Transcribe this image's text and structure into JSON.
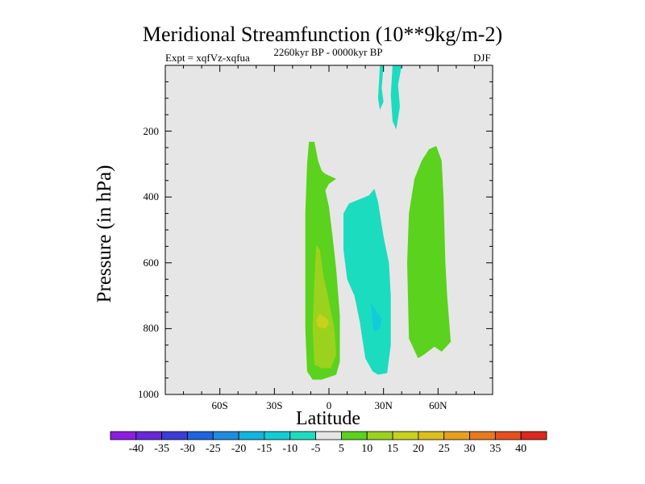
{
  "chart_data": {
    "type": "contour",
    "title": "Meridional Streamfunction (10**9kg/m-2)",
    "subtitle_left": "Expt = xqfVz-xqfua",
    "subtitle_center": "2260kyr BP - 0000kyr BP",
    "subtitle_right": "DJF",
    "xlabel": "Latitude",
    "ylabel": "Pressure (in hPa)",
    "xlim": [
      -90,
      90
    ],
    "ylim": [
      1000,
      0
    ],
    "x_ticks": [
      {
        "value": -60,
        "label": "60S"
      },
      {
        "value": -30,
        "label": "30S"
      },
      {
        "value": 0,
        "label": "0"
      },
      {
        "value": 30,
        "label": "30N"
      },
      {
        "value": 60,
        "label": "60N"
      }
    ],
    "y_ticks": [
      {
        "value": 200,
        "label": "200"
      },
      {
        "value": 400,
        "label": "400"
      },
      {
        "value": 600,
        "label": "600"
      },
      {
        "value": 800,
        "label": "800"
      },
      {
        "value": 1000,
        "label": "1000"
      }
    ],
    "background_color": "#e6e6e6",
    "colorbar": {
      "labels": [
        "-40",
        "-35",
        "-30",
        "-25",
        "-20",
        "-15",
        "-10",
        "-5",
        "5",
        "10",
        "15",
        "20",
        "25",
        "30",
        "35",
        "40"
      ],
      "colors": [
        "#8c1ee0",
        "#6a28d8",
        "#3c3cd8",
        "#1e64e0",
        "#1e8ce0",
        "#14b4e0",
        "#14ccd8",
        "#1cdcc0",
        "#e6e6e6",
        "#5ad21e",
        "#9bd21e",
        "#c8d21e",
        "#dcbe1e",
        "#e6a01e",
        "#e67a1e",
        "#e6501e",
        "#dc281e"
      ]
    },
    "regions": [
      {
        "label": "equatorial positive cell (5 to 10)",
        "color": "#5ad21e",
        "points": [
          [
            -11,
            232
          ],
          [
            -8,
            232
          ],
          [
            -6,
            290
          ],
          [
            -4,
            320
          ],
          [
            -2,
            330
          ],
          [
            4,
            345
          ],
          [
            0,
            360
          ],
          [
            -2,
            380
          ],
          [
            0,
            430
          ],
          [
            2,
            520
          ],
          [
            4,
            620
          ],
          [
            6,
            760
          ],
          [
            6,
            900
          ],
          [
            4,
            940
          ],
          [
            -4,
            955
          ],
          [
            -9,
            955
          ],
          [
            -12,
            930
          ],
          [
            -13,
            800
          ],
          [
            -13,
            600
          ],
          [
            -13,
            450
          ],
          [
            -12,
            300
          ]
        ]
      },
      {
        "label": "equatorial core (10 to 15)",
        "color": "#9bd21e",
        "points": [
          [
            -7,
            545
          ],
          [
            -5,
            560
          ],
          [
            -3,
            640
          ],
          [
            -1,
            690
          ],
          [
            3,
            800
          ],
          [
            4,
            880
          ],
          [
            1,
            920
          ],
          [
            -4,
            920
          ],
          [
            -8,
            910
          ],
          [
            -9,
            800
          ],
          [
            -8,
            650
          ]
        ]
      },
      {
        "label": "equatorial core max (15 to 20)",
        "color": "#c8d21e",
        "points": [
          [
            -5,
            755
          ],
          [
            -1,
            770
          ],
          [
            0,
            785
          ],
          [
            -2,
            800
          ],
          [
            -6,
            795
          ],
          [
            -7,
            775
          ]
        ]
      },
      {
        "label": "tropical negative cell (-5 to -10)",
        "color": "#1cdcc0",
        "points": [
          [
            8,
            450
          ],
          [
            11,
            420
          ],
          [
            22,
            395
          ],
          [
            25,
            375
          ],
          [
            27,
            415
          ],
          [
            30,
            520
          ],
          [
            33,
            600
          ],
          [
            34,
            700
          ],
          [
            34,
            850
          ],
          [
            32,
            935
          ],
          [
            27,
            940
          ],
          [
            24,
            930
          ],
          [
            20,
            890
          ],
          [
            17,
            780
          ],
          [
            14,
            700
          ],
          [
            10,
            650
          ],
          [
            8,
            560
          ]
        ]
      },
      {
        "label": "tropical negative core (-10 to -15)",
        "color": "#14ccd8",
        "points": [
          [
            23,
            720
          ],
          [
            26,
            745
          ],
          [
            29,
            770
          ],
          [
            28,
            800
          ],
          [
            25,
            810
          ],
          [
            24,
            790
          ]
        ]
      },
      {
        "label": "subtropical positive cell (5 to 10)",
        "color": "#5ad21e",
        "points": [
          [
            47,
            345
          ],
          [
            51,
            290
          ],
          [
            55,
            255
          ],
          [
            59,
            245
          ],
          [
            62,
            290
          ],
          [
            63,
            400
          ],
          [
            64,
            600
          ],
          [
            65,
            700
          ],
          [
            67,
            840
          ],
          [
            62,
            870
          ],
          [
            58,
            855
          ],
          [
            52,
            880
          ],
          [
            49,
            890
          ],
          [
            44,
            830
          ],
          [
            43,
            600
          ],
          [
            44,
            450
          ]
        ]
      },
      {
        "label": "upper plume west",
        "color": "#1cdcc0",
        "points": [
          [
            28,
            0
          ],
          [
            30,
            0
          ],
          [
            29,
            70
          ],
          [
            30,
            110
          ],
          [
            28,
            135
          ],
          [
            27,
            100
          ]
        ]
      },
      {
        "label": "upper plume east",
        "color": "#1cdcc0",
        "points": [
          [
            35,
            0
          ],
          [
            40,
            0
          ],
          [
            38,
            60
          ],
          [
            39,
            125
          ],
          [
            37,
            195
          ],
          [
            35,
            170
          ],
          [
            34,
            90
          ]
        ]
      }
    ]
  }
}
